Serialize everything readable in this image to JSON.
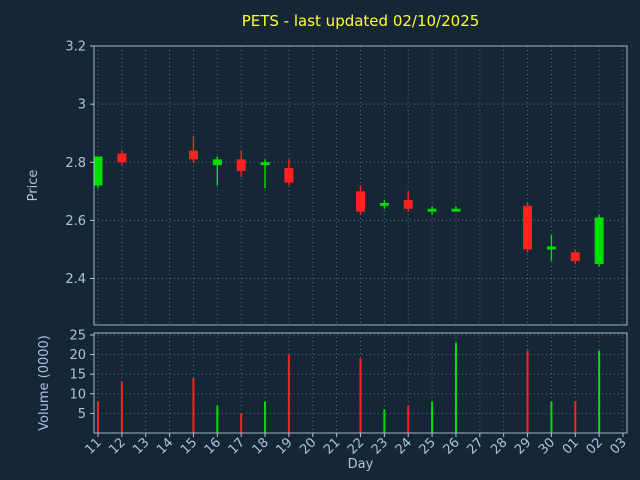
{
  "title": "PETS - last updated 02/10/2025",
  "axes": {
    "price_label": "Price",
    "volume_label": "Volume (0000)",
    "x_label": "Day"
  },
  "colors": {
    "background": "#152736",
    "text": "#aac4de",
    "title": "#ffff33",
    "grid": "#9ab4cc",
    "spine": "#b9cfe2",
    "up": "#00e000",
    "down": "#ff2020"
  },
  "chart_data": {
    "type": "candlestick-with-volume",
    "title": "PETS - last updated 02/10/2025",
    "xlabel": "Day",
    "ylabel": "Price",
    "ylabel2": "Volume (0000)",
    "legend": "none",
    "grid": "dotted",
    "x_categories": [
      "11",
      "12",
      "13",
      "14",
      "15",
      "16",
      "17",
      "18",
      "19",
      "20",
      "21",
      "22",
      "23",
      "24",
      "25",
      "26",
      "27",
      "28",
      "29",
      "30",
      "01",
      "02",
      "03"
    ],
    "price_tick_labels": [
      "3.2",
      "3",
      "2.8",
      "2.6",
      "2.4"
    ],
    "price_tick_values": [
      3.2,
      3.0,
      2.8,
      2.6,
      2.4
    ],
    "price_ylim": [
      2.24,
      3.2
    ],
    "volume_tick_values": [
      25,
      20,
      15,
      10,
      5
    ],
    "volume_ylim": [
      0,
      25.5
    ],
    "candles": [
      {
        "day": "11",
        "open": 2.72,
        "high": 2.82,
        "low": 2.71,
        "close": 2.82,
        "volume": 8,
        "dir": "up",
        "vol_dir": "down"
      },
      {
        "day": "12",
        "open": 2.83,
        "high": 2.84,
        "low": 2.79,
        "close": 2.8,
        "volume": 13,
        "dir": "down",
        "vol_dir": "down"
      },
      {
        "day": "15",
        "open": 2.84,
        "high": 2.89,
        "low": 2.8,
        "close": 2.81,
        "volume": 14,
        "dir": "down",
        "vol_dir": "down"
      },
      {
        "day": "16",
        "open": 2.79,
        "high": 2.82,
        "low": 2.72,
        "close": 2.81,
        "volume": 7,
        "dir": "up",
        "vol_dir": "up"
      },
      {
        "day": "17",
        "open": 2.81,
        "high": 2.84,
        "low": 2.75,
        "close": 2.77,
        "volume": 5,
        "dir": "down",
        "vol_dir": "down"
      },
      {
        "day": "18",
        "open": 2.79,
        "high": 2.81,
        "low": 2.71,
        "close": 2.8,
        "volume": 8,
        "dir": "up",
        "vol_dir": "up"
      },
      {
        "day": "19",
        "open": 2.78,
        "high": 2.81,
        "low": 2.72,
        "close": 2.73,
        "volume": 20,
        "dir": "down",
        "vol_dir": "down"
      },
      {
        "day": "22",
        "open": 2.7,
        "high": 2.72,
        "low": 2.62,
        "close": 2.63,
        "volume": 19,
        "dir": "down",
        "vol_dir": "down"
      },
      {
        "day": "23",
        "open": 2.65,
        "high": 2.67,
        "low": 2.64,
        "close": 2.66,
        "volume": 6,
        "dir": "up",
        "vol_dir": "up"
      },
      {
        "day": "24",
        "open": 2.67,
        "high": 2.7,
        "low": 2.63,
        "close": 2.64,
        "volume": 7,
        "dir": "down",
        "vol_dir": "down"
      },
      {
        "day": "25",
        "open": 2.63,
        "high": 2.65,
        "low": 2.62,
        "close": 2.64,
        "volume": 8,
        "dir": "up",
        "vol_dir": "up"
      },
      {
        "day": "26",
        "open": 2.63,
        "high": 2.65,
        "low": 2.63,
        "close": 2.64,
        "volume": 23,
        "dir": "up",
        "vol_dir": "up"
      },
      {
        "day": "29",
        "open": 2.65,
        "high": 2.66,
        "low": 2.49,
        "close": 2.5,
        "volume": 21,
        "dir": "down",
        "vol_dir": "down"
      },
      {
        "day": "30",
        "open": 2.5,
        "high": 2.55,
        "low": 2.46,
        "close": 2.51,
        "volume": 8,
        "dir": "up",
        "vol_dir": "up"
      },
      {
        "day": "01",
        "open": 2.49,
        "high": 2.5,
        "low": 2.45,
        "close": 2.46,
        "volume": 8,
        "dir": "down",
        "vol_dir": "down"
      },
      {
        "day": "02",
        "open": 2.45,
        "high": 2.62,
        "low": 2.44,
        "close": 2.61,
        "volume": 21,
        "dir": "up",
        "vol_dir": "up"
      }
    ]
  }
}
